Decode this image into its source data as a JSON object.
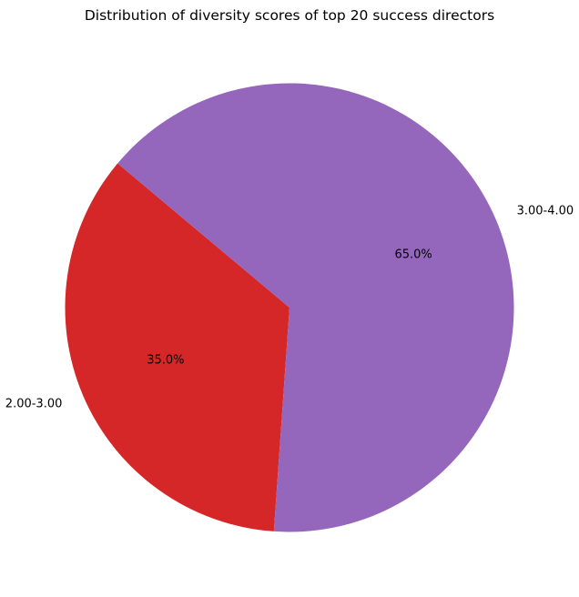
{
  "chart_data": {
    "type": "pie",
    "title": "Distribution of diversity scores of top 20 success directors",
    "categories": [
      "2.00-3.00",
      "3.00-4.00"
    ],
    "values": [
      35.0,
      65.0
    ],
    "percent_labels": [
      "35.0%",
      "65.0%"
    ],
    "colors": [
      "#d62728",
      "#9467bd"
    ],
    "start_angle_deg": 140,
    "direction": "counterclockwise",
    "legend": "none"
  }
}
